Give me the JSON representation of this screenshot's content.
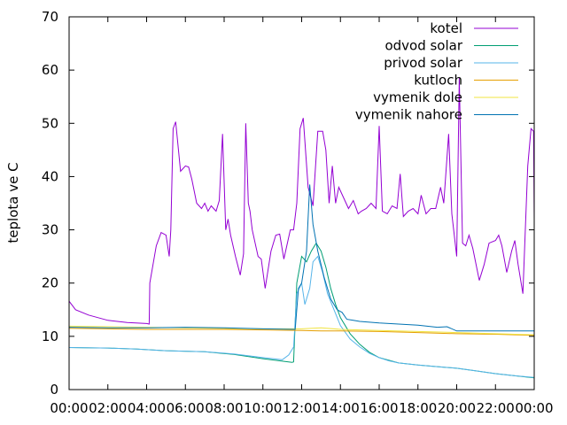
{
  "chart_data": {
    "type": "line",
    "title": "",
    "xlabel": "",
    "ylabel": "teplota ve C",
    "xlim": [
      "00:00",
      "24:00"
    ],
    "ylim": [
      0,
      70
    ],
    "grid": false,
    "legend_position": "top-right",
    "x_ticks": [
      "00:00",
      "02:00",
      "04:00",
      "06:00",
      "08:00",
      "10:00",
      "12:00",
      "14:00",
      "16:00",
      "18:00",
      "20:00",
      "22:00",
      "00:00"
    ],
    "y_ticks": [
      "0",
      "10",
      "20",
      "30",
      "40",
      "50",
      "60",
      "70"
    ],
    "series": [
      {
        "name": "kotel",
        "color": "#9400d3",
        "points": [
          [
            "00:00",
            16.6
          ],
          [
            "00:20",
            15.0
          ],
          [
            "01:00",
            14.0
          ],
          [
            "02:00",
            13.0
          ],
          [
            "03:00",
            12.6
          ],
          [
            "04:00",
            12.4
          ],
          [
            "04:08",
            12.3
          ],
          [
            "04:10",
            20.0
          ],
          [
            "04:30",
            27.0
          ],
          [
            "04:45",
            29.5
          ],
          [
            "05:00",
            29.0
          ],
          [
            "05:10",
            25.0
          ],
          [
            "05:15",
            30.0
          ],
          [
            "05:22",
            49.0
          ],
          [
            "05:30",
            50.3
          ],
          [
            "05:45",
            41.0
          ],
          [
            "06:00",
            42.0
          ],
          [
            "06:10",
            41.8
          ],
          [
            "06:20",
            39.5
          ],
          [
            "06:35",
            35.0
          ],
          [
            "06:50",
            34.0
          ],
          [
            "07:00",
            35.0
          ],
          [
            "07:10",
            33.5
          ],
          [
            "07:20",
            34.5
          ],
          [
            "07:35",
            33.5
          ],
          [
            "07:45",
            35.5
          ],
          [
            "07:55",
            48.0
          ],
          [
            "08:05",
            30.0
          ],
          [
            "08:12",
            32.0
          ],
          [
            "08:20",
            29.0
          ],
          [
            "08:35",
            25.0
          ],
          [
            "08:50",
            21.5
          ],
          [
            "09:00",
            25.5
          ],
          [
            "09:07",
            50.0
          ],
          [
            "09:15",
            35.0
          ],
          [
            "09:20",
            33.5
          ],
          [
            "09:27",
            30.0
          ],
          [
            "09:45",
            25.0
          ],
          [
            "09:55",
            24.5
          ],
          [
            "10:07",
            19.0
          ],
          [
            "10:25",
            26.0
          ],
          [
            "10:40",
            29.0
          ],
          [
            "10:52",
            29.2
          ],
          [
            "11:05",
            24.5
          ],
          [
            "11:25",
            30.0
          ],
          [
            "11:35",
            30.0
          ],
          [
            "11:45",
            35.0
          ],
          [
            "11:55",
            49.0
          ],
          [
            "12:05",
            51.0
          ],
          [
            "12:20",
            38.0
          ],
          [
            "12:35",
            34.5
          ],
          [
            "12:50",
            48.5
          ],
          [
            "13:05",
            48.5
          ],
          [
            "13:15",
            45.0
          ],
          [
            "13:25",
            35.0
          ],
          [
            "13:35",
            42.0
          ],
          [
            "13:45",
            35.0
          ],
          [
            "13:55",
            38.0
          ],
          [
            "14:10",
            36.0
          ],
          [
            "14:25",
            34.0
          ],
          [
            "14:40",
            35.5
          ],
          [
            "14:55",
            33.0
          ],
          [
            "15:05",
            33.5
          ],
          [
            "15:20",
            34.0
          ],
          [
            "15:35",
            35.0
          ],
          [
            "15:50",
            34.0
          ],
          [
            "16:00",
            49.5
          ],
          [
            "16:10",
            33.5
          ],
          [
            "16:25",
            33.0
          ],
          [
            "16:40",
            34.5
          ],
          [
            "16:55",
            34.0
          ],
          [
            "17:05",
            40.5
          ],
          [
            "17:15",
            32.5
          ],
          [
            "17:30",
            33.5
          ],
          [
            "17:45",
            34.0
          ],
          [
            "18:00",
            33.0
          ],
          [
            "18:10",
            36.5
          ],
          [
            "18:25",
            33.0
          ],
          [
            "18:40",
            34.0
          ],
          [
            "18:55",
            34.0
          ],
          [
            "19:10",
            38.0
          ],
          [
            "19:20",
            35.0
          ],
          [
            "19:35",
            48.0
          ],
          [
            "19:45",
            33.0
          ],
          [
            "20:00",
            25.0
          ],
          [
            "20:08",
            58.5
          ],
          [
            "20:18",
            27.5
          ],
          [
            "20:28",
            27.0
          ],
          [
            "20:38",
            29.0
          ],
          [
            "20:50",
            26.5
          ],
          [
            "21:10",
            20.5
          ],
          [
            "21:25",
            23.5
          ],
          [
            "21:40",
            27.5
          ],
          [
            "22:00",
            28.0
          ],
          [
            "22:10",
            29.0
          ],
          [
            "22:20",
            27.0
          ],
          [
            "22:35",
            22.0
          ],
          [
            "22:50",
            26.0
          ],
          [
            "23:00",
            28.0
          ],
          [
            "23:10",
            23.5
          ],
          [
            "23:25",
            18.0
          ],
          [
            "23:40",
            42.0
          ],
          [
            "23:50",
            49.0
          ],
          [
            "23:58",
            48.5
          ],
          [
            "24:00",
            32.0
          ]
        ]
      },
      {
        "name": "odvod solar",
        "color": "#009e73",
        "points": [
          [
            "00:00",
            7.9
          ],
          [
            "02:00",
            7.8
          ],
          [
            "03:30",
            7.6
          ],
          [
            "05:00",
            7.3
          ],
          [
            "07:00",
            7.1
          ],
          [
            "08:30",
            6.6
          ],
          [
            "10:00",
            5.8
          ],
          [
            "11:30",
            5.1
          ],
          [
            "11:35",
            5.2
          ],
          [
            "11:45",
            20.0
          ],
          [
            "12:00",
            25.0
          ],
          [
            "12:15",
            24.0
          ],
          [
            "12:30",
            26.0
          ],
          [
            "12:45",
            27.5
          ],
          [
            "13:00",
            26.0
          ],
          [
            "13:15",
            23.0
          ],
          [
            "13:30",
            19.0
          ],
          [
            "13:45",
            16.0
          ],
          [
            "14:00",
            13.5
          ],
          [
            "14:30",
            10.5
          ],
          [
            "15:00",
            8.5
          ],
          [
            "15:30",
            7.0
          ],
          [
            "16:00",
            6.0
          ],
          [
            "16:30",
            5.5
          ],
          [
            "17:00",
            5.0
          ],
          [
            "18:00",
            4.6
          ],
          [
            "19:00",
            4.3
          ],
          [
            "20:00",
            4.0
          ],
          [
            "21:00",
            3.5
          ],
          [
            "22:00",
            3.0
          ],
          [
            "23:00",
            2.6
          ],
          [
            "24:00",
            2.2
          ]
        ]
      },
      {
        "name": "privod solar",
        "color": "#56b4e9",
        "points": [
          [
            "00:00",
            7.9
          ],
          [
            "02:00",
            7.8
          ],
          [
            "03:30",
            7.6
          ],
          [
            "05:00",
            7.3
          ],
          [
            "07:00",
            7.1
          ],
          [
            "08:30",
            6.7
          ],
          [
            "10:00",
            6.0
          ],
          [
            "11:00",
            5.6
          ],
          [
            "11:20",
            6.5
          ],
          [
            "11:35",
            8.0
          ],
          [
            "11:45",
            18.0
          ],
          [
            "12:00",
            20.0
          ],
          [
            "12:10",
            16.0
          ],
          [
            "12:25",
            19.0
          ],
          [
            "12:35",
            24.0
          ],
          [
            "12:50",
            25.0
          ],
          [
            "13:05",
            22.0
          ],
          [
            "13:20",
            18.0
          ],
          [
            "13:40",
            15.0
          ],
          [
            "14:00",
            12.0
          ],
          [
            "14:30",
            9.5
          ],
          [
            "15:00",
            8.0
          ],
          [
            "15:30",
            6.8
          ],
          [
            "16:00",
            6.0
          ],
          [
            "16:30",
            5.4
          ],
          [
            "17:00",
            5.0
          ],
          [
            "18:00",
            4.6
          ],
          [
            "19:00",
            4.3
          ],
          [
            "20:00",
            4.0
          ],
          [
            "21:00",
            3.5
          ],
          [
            "22:00",
            3.0
          ],
          [
            "23:00",
            2.6
          ],
          [
            "24:00",
            2.3
          ]
        ]
      },
      {
        "name": "kutloch",
        "color": "#e69f00",
        "points": [
          [
            "00:00",
            11.5
          ],
          [
            "02:00",
            11.4
          ],
          [
            "04:00",
            11.3
          ],
          [
            "06:00",
            11.3
          ],
          [
            "08:00",
            11.3
          ],
          [
            "10:00",
            11.2
          ],
          [
            "12:00",
            11.1
          ],
          [
            "13:00",
            11.0
          ],
          [
            "14:00",
            11.0
          ],
          [
            "16:00",
            10.9
          ],
          [
            "18:00",
            10.7
          ],
          [
            "20:00",
            10.5
          ],
          [
            "22:00",
            10.4
          ],
          [
            "24:00",
            10.2
          ]
        ]
      },
      {
        "name": "vymenik dole",
        "color": "#f0e442",
        "points": [
          [
            "00:00",
            11.9
          ],
          [
            "02:00",
            11.8
          ],
          [
            "04:00",
            11.7
          ],
          [
            "06:00",
            11.6
          ],
          [
            "08:00",
            11.5
          ],
          [
            "10:00",
            11.4
          ],
          [
            "12:00",
            11.4
          ],
          [
            "13:00",
            11.6
          ],
          [
            "14:00",
            11.3
          ],
          [
            "16:00",
            11.1
          ],
          [
            "18:00",
            10.9
          ],
          [
            "20:00",
            10.7
          ],
          [
            "22:00",
            10.5
          ],
          [
            "24:00",
            10.3
          ]
        ]
      },
      {
        "name": "vymenik nahore",
        "color": "#0072b2",
        "points": [
          [
            "00:00",
            11.7
          ],
          [
            "02:00",
            11.6
          ],
          [
            "04:00",
            11.6
          ],
          [
            "06:00",
            11.7
          ],
          [
            "08:00",
            11.6
          ],
          [
            "10:00",
            11.4
          ],
          [
            "11:40",
            11.3
          ],
          [
            "11:50",
            19.0
          ],
          [
            "12:00",
            20.0
          ],
          [
            "12:15",
            26.0
          ],
          [
            "12:25",
            38.5
          ],
          [
            "12:35",
            31.0
          ],
          [
            "12:50",
            26.0
          ],
          [
            "13:10",
            21.0
          ],
          [
            "13:30",
            17.0
          ],
          [
            "13:50",
            15.0
          ],
          [
            "14:05",
            14.5
          ],
          [
            "14:20",
            13.2
          ],
          [
            "14:40",
            13.0
          ],
          [
            "15:00",
            12.8
          ],
          [
            "16:00",
            12.5
          ],
          [
            "17:00",
            12.3
          ],
          [
            "18:00",
            12.1
          ],
          [
            "19:00",
            11.7
          ],
          [
            "19:30",
            11.8
          ],
          [
            "20:00",
            11.0
          ],
          [
            "22:00",
            11.0
          ],
          [
            "24:00",
            11.0
          ]
        ]
      }
    ]
  }
}
